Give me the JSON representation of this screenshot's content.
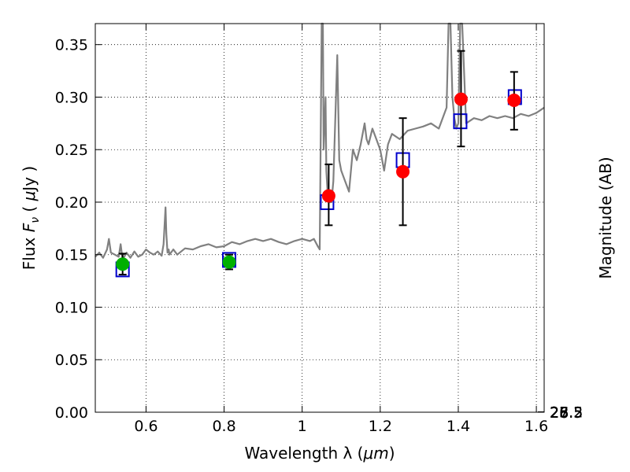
{
  "chart_data": {
    "type": "scatter",
    "xlabel_prefix": "Wavelength  λ (",
    "xlabel_unit": "μm",
    "xlabel_suffix": ")",
    "ylabel_text": "Flux  ",
    "ylabel_symbol": "F",
    "ylabel_sub": "ν",
    "ylabel_unit_open": "  ( ",
    "ylabel_unit_mu": "μ",
    "ylabel_unit_close": "Jy )",
    "y2label": "Magnitude (AB)",
    "xlim": [
      0.47,
      1.62
    ],
    "ylim": [
      0.0,
      0.37
    ],
    "grid": true,
    "x_ticks": [
      0.6,
      0.8,
      1.0,
      1.2,
      1.4,
      1.6
    ],
    "x_tick_labels": [
      "0.6",
      "0.8",
      "1",
      "1.2",
      "1.4",
      "1.6"
    ],
    "y_ticks": [
      0.0,
      0.05,
      0.1,
      0.15,
      0.2,
      0.25,
      0.3,
      0.35
    ],
    "y_tick_labels": [
      "0.00",
      "0.05",
      "0.10",
      "0.15",
      "0.20",
      "0.25",
      "0.30",
      "0.35"
    ],
    "mag_ticks": [
      25,
      25.2,
      25.5,
      26,
      26.5,
      27,
      28
    ],
    "mag_tick_labels": [
      "25",
      "25.2",
      "25.5",
      "26",
      "26.5",
      "27",
      "28"
    ],
    "colors": {
      "spectrum": "#808080",
      "green_points": "#00b000",
      "red_points": "#ff0000",
      "model_boxes": "#0000cc",
      "error_bars": "#000000"
    },
    "series": [
      {
        "name": "Model spectrum",
        "kind": "line",
        "x": [
          0.47,
          0.48,
          0.49,
          0.5,
          0.505,
          0.51,
          0.52,
          0.53,
          0.535,
          0.54,
          0.55,
          0.56,
          0.57,
          0.58,
          0.59,
          0.6,
          0.61,
          0.62,
          0.63,
          0.64,
          0.645,
          0.65,
          0.652,
          0.655,
          0.658,
          0.66,
          0.67,
          0.68,
          0.69,
          0.7,
          0.72,
          0.74,
          0.76,
          0.78,
          0.8,
          0.82,
          0.84,
          0.86,
          0.88,
          0.9,
          0.92,
          0.94,
          0.96,
          0.98,
          1.0,
          1.02,
          1.03,
          1.04,
          1.045,
          1.05,
          1.053,
          1.055,
          1.06,
          1.062,
          1.065,
          1.07,
          1.075,
          1.08,
          1.085,
          1.09,
          1.092,
          1.095,
          1.1,
          1.11,
          1.12,
          1.13,
          1.14,
          1.15,
          1.16,
          1.165,
          1.17,
          1.18,
          1.19,
          1.2,
          1.21,
          1.22,
          1.23,
          1.25,
          1.27,
          1.29,
          1.31,
          1.33,
          1.35,
          1.36,
          1.37,
          1.375,
          1.38,
          1.385,
          1.39,
          1.395,
          1.4,
          1.405,
          1.41,
          1.42,
          1.44,
          1.46,
          1.48,
          1.5,
          1.52,
          1.54,
          1.56,
          1.58,
          1.6,
          1.62
        ],
        "y": [
          0.148,
          0.152,
          0.147,
          0.155,
          0.165,
          0.152,
          0.15,
          0.148,
          0.16,
          0.145,
          0.152,
          0.147,
          0.153,
          0.148,
          0.15,
          0.155,
          0.152,
          0.15,
          0.153,
          0.149,
          0.16,
          0.195,
          0.17,
          0.152,
          0.155,
          0.15,
          0.155,
          0.15,
          0.153,
          0.156,
          0.155,
          0.158,
          0.16,
          0.157,
          0.158,
          0.162,
          0.16,
          0.163,
          0.165,
          0.163,
          0.165,
          0.162,
          0.16,
          0.163,
          0.165,
          0.163,
          0.165,
          0.158,
          0.155,
          0.37,
          0.37,
          0.25,
          0.3,
          0.23,
          0.21,
          0.2,
          0.2,
          0.22,
          0.28,
          0.34,
          0.3,
          0.24,
          0.23,
          0.22,
          0.21,
          0.25,
          0.24,
          0.255,
          0.275,
          0.26,
          0.255,
          0.27,
          0.26,
          0.25,
          0.23,
          0.255,
          0.265,
          0.26,
          0.268,
          0.27,
          0.272,
          0.275,
          0.27,
          0.28,
          0.29,
          0.37,
          0.37,
          0.3,
          0.28,
          0.27,
          0.275,
          0.37,
          0.37,
          0.275,
          0.28,
          0.278,
          0.282,
          0.28,
          0.282,
          0.28,
          0.284,
          0.282,
          0.285,
          0.29
        ]
      },
      {
        "name": "Green photometry",
        "kind": "points",
        "x": [
          0.54,
          0.813
        ],
        "y": [
          0.141,
          0.143
        ],
        "yerr": [
          0.01,
          0.007
        ]
      },
      {
        "name": "Red photometry",
        "kind": "points",
        "x": [
          1.068,
          1.258,
          1.407,
          1.543
        ],
        "y": [
          0.206,
          0.229,
          0.298,
          0.297
        ],
        "yerr_low": [
          0.028,
          0.051,
          0.045,
          0.028
        ],
        "yerr_high": [
          0.03,
          0.051,
          0.046,
          0.027
        ]
      },
      {
        "name": "Model band fluxes",
        "kind": "boxes",
        "x": [
          0.54,
          0.813,
          1.064,
          1.258,
          1.405,
          1.545
        ],
        "y": [
          0.136,
          0.145,
          0.2,
          0.24,
          0.277,
          0.3
        ]
      }
    ]
  }
}
